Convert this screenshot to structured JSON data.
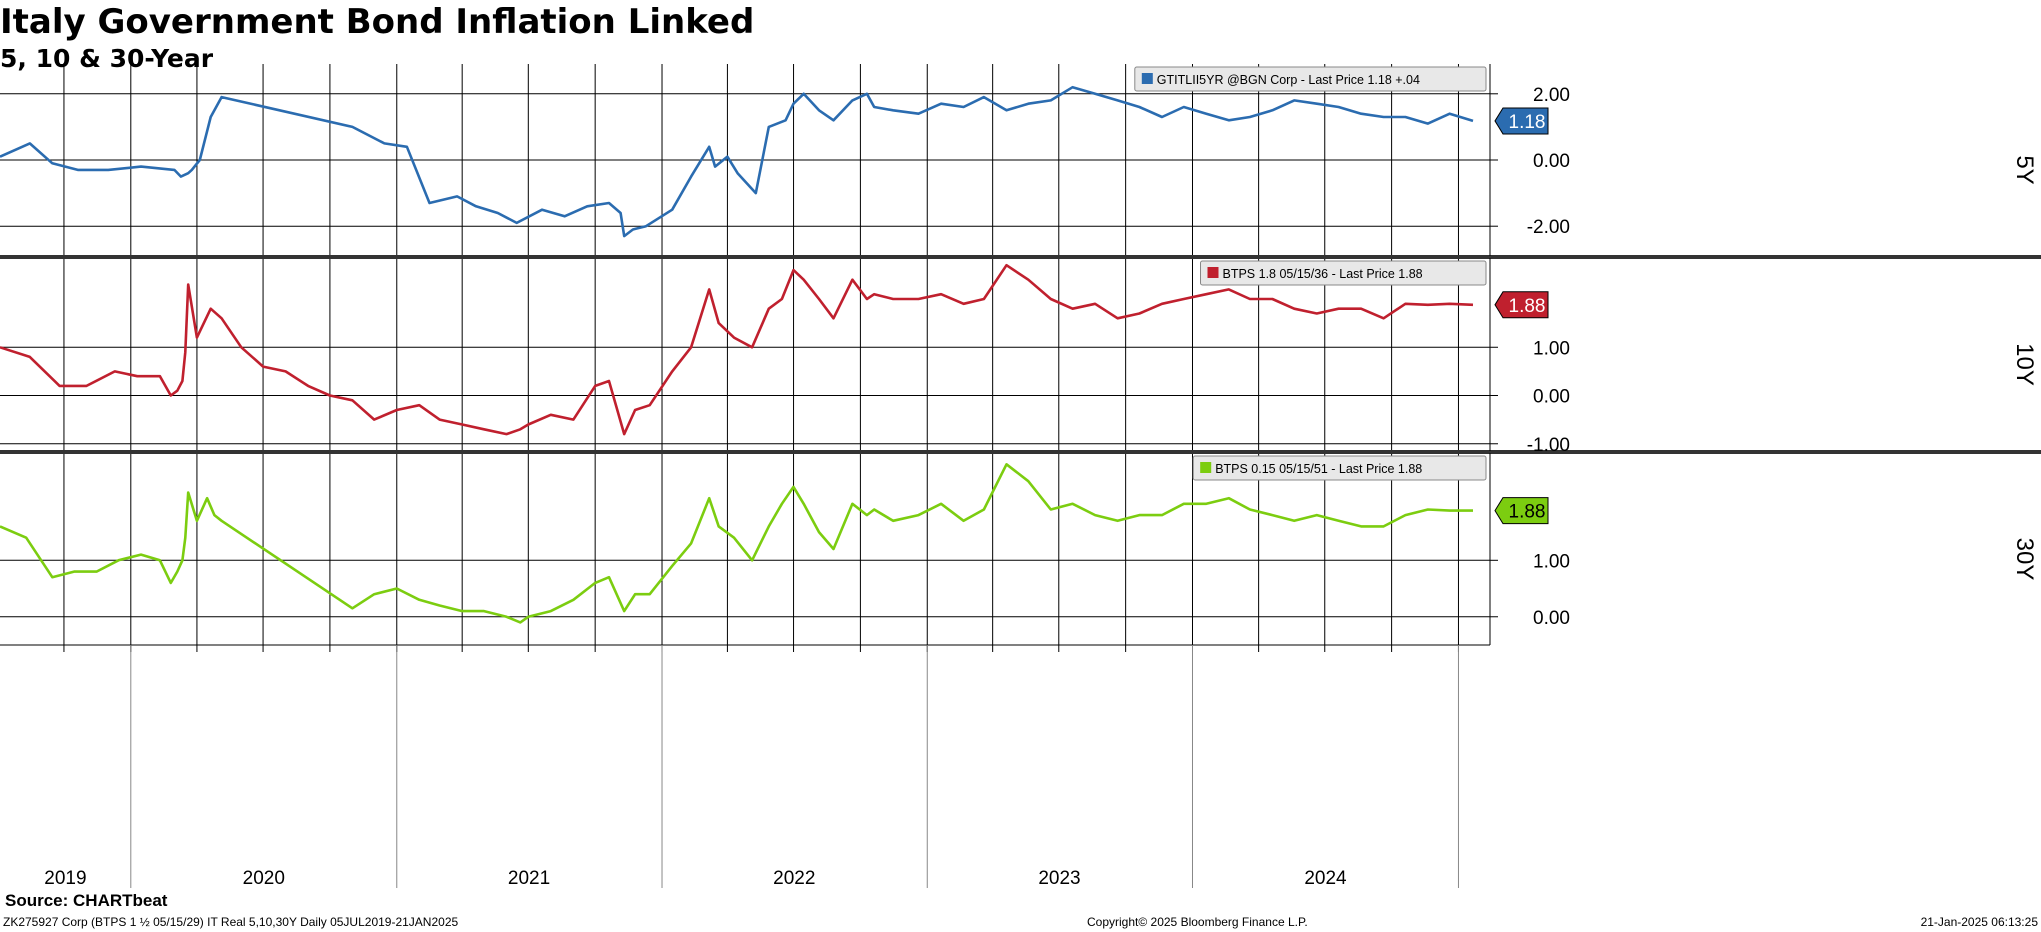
{
  "header": {
    "title": "Italy Government Bond Inflation Linked",
    "subtitle": "5, 10 & 30-Year"
  },
  "footer": {
    "source": "Source: CHARTbeat",
    "left": "ZK275927 Corp (BTPS 1 ½ 05/15/29) IT Real 5,10,30Y  Daily 05JUL2019-21JAN2025",
    "center": "Copyright© 2025 Bloomberg Finance L.P.",
    "right": "21-Jan-2025 06:13:25"
  },
  "colors": {
    "five_year": "#2b6cb0",
    "ten_year": "#c0202e",
    "thirty_year": "#7ccd10"
  },
  "chart_data": [
    {
      "type": "line",
      "panel": "5Y",
      "axis_label": "5Y",
      "legend": "GTITLII5YR @BGN Corp - Last Price 1.18  +.04",
      "last_value_tag": "1.18",
      "yticks": [
        "2.00",
        "0.00",
        "-2.00"
      ],
      "ylim": [
        -2.9,
        2.9
      ],
      "grid": true,
      "series": [
        {
          "name": "GTITLII5YR @BGN Corp",
          "color": "#2b6cb0",
          "x": [
            "2019-07-05",
            "2019-08-15",
            "2019-09-15",
            "2019-10-20",
            "2019-12-01",
            "2020-01-15",
            "2020-03-01",
            "2020-03-10",
            "2020-03-20",
            "2020-03-25",
            "2020-04-05",
            "2020-04-20",
            "2020-05-05",
            "2020-11-01",
            "2020-12-15",
            "2021-01-15",
            "2021-02-15",
            "2021-03-25",
            "2021-04-20",
            "2021-05-20",
            "2021-06-15",
            "2021-07-20",
            "2021-08-20",
            "2021-09-20",
            "2021-10-20",
            "2021-11-05",
            "2021-11-10",
            "2021-11-22",
            "2021-12-10",
            "2022-01-15",
            "2022-02-10",
            "2022-03-07",
            "2022-03-15",
            "2022-04-01",
            "2022-04-15",
            "2022-05-10",
            "2022-05-28",
            "2022-06-20",
            "2022-07-01",
            "2022-07-15",
            "2022-08-05",
            "2022-08-25",
            "2022-09-20",
            "2022-10-10",
            "2022-10-20",
            "2022-11-15",
            "2022-12-20",
            "2023-01-20",
            "2023-02-20",
            "2023-03-20",
            "2023-04-20",
            "2023-05-20",
            "2023-06-20",
            "2023-07-20",
            "2023-08-20",
            "2023-09-20",
            "2023-10-20",
            "2023-11-20",
            "2023-12-20",
            "2024-01-20",
            "2024-02-20",
            "2024-03-20",
            "2024-04-20",
            "2024-05-20",
            "2024-06-20",
            "2024-07-20",
            "2024-08-20",
            "2024-09-20",
            "2024-10-20",
            "2024-11-20",
            "2024-12-20",
            "2025-01-21"
          ],
          "y": [
            0.1,
            0.5,
            -0.1,
            -0.3,
            -0.3,
            -0.2,
            -0.3,
            -0.5,
            -0.4,
            -0.3,
            0.0,
            1.3,
            1.9,
            1.0,
            0.5,
            0.4,
            -1.3,
            -1.1,
            -1.4,
            -1.6,
            -1.9,
            -1.5,
            -1.7,
            -1.4,
            -1.3,
            -1.6,
            -2.3,
            -2.1,
            -2.0,
            -1.5,
            -0.5,
            0.4,
            -0.2,
            0.1,
            -0.4,
            -1.0,
            1.0,
            1.2,
            1.7,
            2.0,
            1.5,
            1.2,
            1.8,
            2.0,
            1.6,
            1.5,
            1.4,
            1.7,
            1.6,
            1.9,
            1.5,
            1.7,
            1.8,
            2.2,
            2.0,
            1.8,
            1.6,
            1.3,
            1.6,
            1.4,
            1.2,
            1.3,
            1.5,
            1.8,
            1.7,
            1.6,
            1.4,
            1.3,
            1.3,
            1.1,
            1.4,
            1.18
          ]
        }
      ]
    },
    {
      "type": "line",
      "panel": "10Y",
      "axis_label": "10Y",
      "legend": "BTPS 1.8 05/15/36 - Last Price 1.88",
      "last_value_tag": "1.88",
      "yticks": [
        "1.00",
        "0.00",
        "-1.00"
      ],
      "ylim": [
        -1.15,
        2.85
      ],
      "grid": true,
      "series": [
        {
          "name": "BTPS 1.8 05/15/36",
          "color": "#c0202e",
          "x": [
            "2019-07-05",
            "2019-08-15",
            "2019-09-25",
            "2019-11-01",
            "2019-12-10",
            "2020-01-10",
            "2020-02-10",
            "2020-02-25",
            "2020-03-05",
            "2020-03-12",
            "2020-03-16",
            "2020-03-20",
            "2020-04-01",
            "2020-04-20",
            "2020-05-05",
            "2020-06-01",
            "2020-07-01",
            "2020-08-01",
            "2020-09-01",
            "2020-10-01",
            "2020-11-01",
            "2020-12-01",
            "2021-01-01",
            "2021-02-01",
            "2021-03-01",
            "2021-04-01",
            "2021-05-01",
            "2021-06-01",
            "2021-06-20",
            "2021-07-01",
            "2021-08-01",
            "2021-09-01",
            "2021-10-01",
            "2021-10-20",
            "2021-11-10",
            "2021-11-25",
            "2021-12-15",
            "2022-01-15",
            "2022-02-10",
            "2022-03-07",
            "2022-03-20",
            "2022-04-10",
            "2022-05-05",
            "2022-05-28",
            "2022-06-15",
            "2022-07-01",
            "2022-07-15",
            "2022-08-05",
            "2022-08-25",
            "2022-09-20",
            "2022-10-10",
            "2022-10-20",
            "2022-11-15",
            "2022-12-20",
            "2023-01-20",
            "2023-02-20",
            "2023-03-20",
            "2023-04-20",
            "2023-05-20",
            "2023-06-20",
            "2023-07-20",
            "2023-08-20",
            "2023-09-20",
            "2023-10-20",
            "2023-11-20",
            "2023-12-20",
            "2024-01-20",
            "2024-02-20",
            "2024-03-20",
            "2024-04-20",
            "2024-05-20",
            "2024-06-20",
            "2024-07-20",
            "2024-08-20",
            "2024-09-20",
            "2024-10-20",
            "2024-11-20",
            "2024-12-20",
            "2025-01-21"
          ],
          "y": [
            1.0,
            0.8,
            0.2,
            0.2,
            0.5,
            0.4,
            0.4,
            0.0,
            0.1,
            0.3,
            0.9,
            2.3,
            1.2,
            1.8,
            1.6,
            1.0,
            0.6,
            0.5,
            0.2,
            0.0,
            -0.1,
            -0.5,
            -0.3,
            -0.2,
            -0.5,
            -0.6,
            -0.7,
            -0.8,
            -0.7,
            -0.6,
            -0.4,
            -0.5,
            0.2,
            0.3,
            -0.8,
            -0.3,
            -0.2,
            0.5,
            1.0,
            2.2,
            1.5,
            1.2,
            1.0,
            1.8,
            2.0,
            2.6,
            2.4,
            2.0,
            1.6,
            2.4,
            2.0,
            2.1,
            2.0,
            2.0,
            2.1,
            1.9,
            2.0,
            2.7,
            2.4,
            2.0,
            1.8,
            1.9,
            1.6,
            1.7,
            1.9,
            2.0,
            2.1,
            2.2,
            2.0,
            2.0,
            1.8,
            1.7,
            1.8,
            1.8,
            1.6,
            1.9,
            1.88,
            1.9,
            1.88
          ]
        }
      ]
    },
    {
      "type": "line",
      "panel": "30Y",
      "axis_label": "30Y",
      "legend": "BTPS 0.15 05/15/51 - Last Price 1.88",
      "last_value_tag": "1.88",
      "yticks": [
        "1.00",
        "0.00"
      ],
      "ylim": [
        -0.5,
        2.9
      ],
      "grid": true,
      "series": [
        {
          "name": "BTPS 0.15 05/15/51",
          "color": "#7ccd10",
          "x": [
            "2019-07-05",
            "2019-08-10",
            "2019-09-15",
            "2019-10-15",
            "2019-11-15",
            "2019-12-15",
            "2020-01-15",
            "2020-02-10",
            "2020-02-25",
            "2020-03-05",
            "2020-03-12",
            "2020-03-16",
            "2020-03-20",
            "2020-04-01",
            "2020-04-15",
            "2020-04-25",
            "2020-05-05",
            "2020-11-01",
            "2020-12-01",
            "2021-01-01",
            "2021-02-01",
            "2021-03-01",
            "2021-04-01",
            "2021-05-01",
            "2021-06-01",
            "2021-06-20",
            "2021-07-01",
            "2021-08-01",
            "2021-09-01",
            "2021-10-01",
            "2021-10-20",
            "2021-11-10",
            "2021-11-25",
            "2021-12-15",
            "2022-01-15",
            "2022-02-10",
            "2022-03-07",
            "2022-03-20",
            "2022-04-10",
            "2022-05-05",
            "2022-05-28",
            "2022-06-15",
            "2022-07-01",
            "2022-07-15",
            "2022-08-05",
            "2022-08-25",
            "2022-09-20",
            "2022-10-10",
            "2022-10-20",
            "2022-11-15",
            "2022-12-20",
            "2023-01-20",
            "2023-02-20",
            "2023-03-20",
            "2023-04-20",
            "2023-05-20",
            "2023-06-20",
            "2023-07-20",
            "2023-08-20",
            "2023-09-20",
            "2023-10-20",
            "2023-11-20",
            "2023-12-20",
            "2024-01-20",
            "2024-02-20",
            "2024-03-20",
            "2024-04-20",
            "2024-05-20",
            "2024-06-20",
            "2024-07-20",
            "2024-08-20",
            "2024-09-20",
            "2024-10-20",
            "2024-11-20",
            "2024-12-20",
            "2025-01-21"
          ],
          "y": [
            1.6,
            1.4,
            0.7,
            0.8,
            0.8,
            1.0,
            1.1,
            1.0,
            0.6,
            0.8,
            1.0,
            1.4,
            2.2,
            1.7,
            2.1,
            1.8,
            1.7,
            0.15,
            0.4,
            0.5,
            0.3,
            0.2,
            0.1,
            0.1,
            0.0,
            -0.1,
            0.0,
            0.1,
            0.3,
            0.6,
            0.7,
            0.1,
            0.4,
            0.4,
            0.9,
            1.3,
            2.1,
            1.6,
            1.4,
            1.0,
            1.6,
            2.0,
            2.3,
            2.0,
            1.5,
            1.2,
            2.0,
            1.8,
            1.9,
            1.7,
            1.8,
            2.0,
            1.7,
            1.9,
            2.7,
            2.4,
            1.9,
            2.0,
            1.8,
            1.7,
            1.8,
            1.8,
            2.0,
            2.0,
            2.1,
            1.9,
            1.8,
            1.7,
            1.8,
            1.7,
            1.6,
            1.6,
            1.8,
            1.9,
            1.88,
            1.88
          ]
        }
      ]
    }
  ],
  "xaxis": {
    "years": [
      "2019",
      "2020",
      "2021",
      "2022",
      "2023",
      "2024"
    ]
  }
}
